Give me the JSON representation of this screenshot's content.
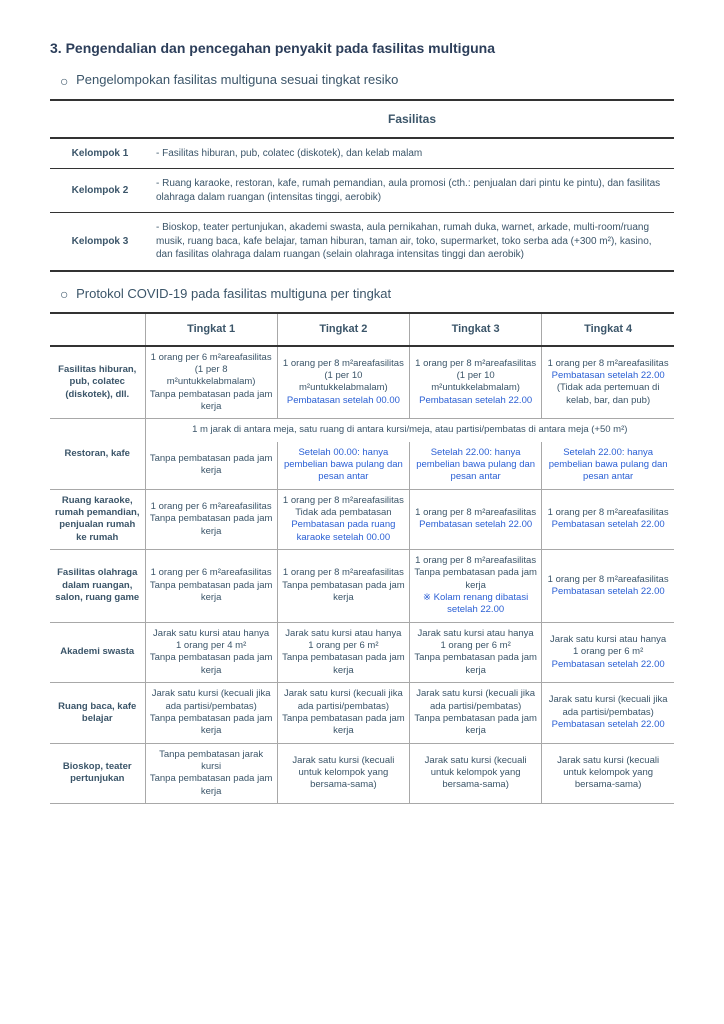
{
  "section": {
    "number": "3.",
    "title": "Pengendalian dan pencegahan penyakit pada fasilitas multiguna"
  },
  "sub1": {
    "title": "Pengelompokan fasilitas multiguna sesuai tingkat resiko",
    "header": "Fasilitas",
    "rows": [
      {
        "label": "Kelompok 1",
        "text": "- Fasilitas   hiburan, pub, colatec (diskotek), dan kelab malam"
      },
      {
        "label": "Kelompok 2",
        "text": "- Ruang   karaoke, restoran, kafe, rumah pemandian, aula promosi (cth.: penjualan dari   pintu ke pintu), dan fasilitas olahraga dalam ruangan (intensitas tinggi,   aerobik)"
      },
      {
        "label": "Kelompok 3",
        "text": "- Bioskop,   teater pertunjukan, akademi swasta, aula pernikahan, rumah duka, warnet, arkade, multi-room/ruang musik, ruang baca, kafe belajar, taman hiburan,   taman air, toko, supermarket, toko serba ada (+300 m²), kasino, dan fasilitas olahraga dalam ruangan (selain olahraga intensitas tinggi dan aerobik)"
      }
    ]
  },
  "sub2": {
    "title": "Protokol COVID-19 pada fasilitas multiguna per tingkat",
    "headers": [
      "",
      "Tingkat 1",
      "Tingkat 2",
      "Tingkat 3",
      "Tingkat 4"
    ],
    "rows": [
      {
        "label": "Fasilitas hiburan, pub, colatec (diskotek), dll.",
        "c1": {
          "a": "1 orang per   6 m²areafasilitas (1 per 8 m²untukkelabmalam)",
          "b": "Tanpa  pembatasan pada jam kerja"
        },
        "c2": {
          "a": "1 orang per 8 m²areafasilitas (1 per   10 m²untukkelabmalam)",
          "b": "Pembatasan  setelah 00.00",
          "b_blue": true
        },
        "c3": {
          "a": "1 orang per   8 m²areafasilitas (1 per   10 m²untukkelabmalam)",
          "b": "Pembatasan  setelah 22.00",
          "b_blue": true
        },
        "c4": {
          "a": "1 orang per   8 m²areafasilitas",
          "b": "Pembatasan   setelah 22.00",
          "b_blue": true,
          "c": "(Tidak ada   pertemuan di kelab, bar, dan pub)"
        }
      },
      {
        "label": "Restoran, kafe",
        "span": "1 m jarak di   antara meja, satu ruang di antara kursi/meja, atau partisi/pembatas di antara meja (+50 m²)",
        "c1": {
          "a": "Tanpa  pembatasan pada jam kerja"
        },
        "c2": {
          "a": "Setelah   00.00: hanya pembelian bawa pulang dan pesan antar",
          "a_blue": true
        },
        "c3": {
          "a": "Setelah   22.00: hanya pembelian bawa pulang dan pesan antar",
          "a_blue": true
        },
        "c4": {
          "a": "Setelah   22.00: hanya pembelian bawa pulang dan pesan antar",
          "a_blue": true
        }
      },
      {
        "label": "Ruang karaoke, rumah pemandian, penjualan rumah ke rumah",
        "c1": {
          "a": "1 orang per   6 m²areafasilitas",
          "b": "Tanpa  pembatasan pada jam kerja"
        },
        "c2": {
          "a": "1 orang per   8 m²areafasilitas Tidak ada pembatasan",
          "b": "Pembatasan   pada ruang karaoke setelah 00.00",
          "b_blue": true
        },
        "c3": {
          "a": "1 orang per   8 m²areafasilitas",
          "b": "Pembatasan  setelah 22.00",
          "b_blue": true
        },
        "c4": {
          "a": "1 orang per   8 m²areafasilitas",
          "b": "Pembatasan  setelah 22.00",
          "b_blue": true
        }
      },
      {
        "label": "Fasilitas olahraga dalam ruangan, salon, ruang game",
        "c1": {
          "a": "1 orang per   6 m²areafasilitas",
          "b": "Tanpa  pembatasan pada jam kerja"
        },
        "c2": {
          "a": "1 orang per   8 m²areafasilitas",
          "b": "Tanpa  pembatasan pada jam kerja"
        },
        "c3": {
          "a": "1 orang per   8 m²areafasilitas Tanpa  pembatasan pada jam kerja",
          "b": "※  Kolam renang dibatasi setelah  22.00",
          "b_blue": true
        },
        "c4": {
          "a": "1 orang per   8 m²areafasilitas",
          "b": "Pembatasan  setelah 22.00",
          "b_blue": true
        }
      },
      {
        "label": "Akademi swasta",
        "c1": {
          "a": "Jarak satu   kursi atau hanya 1 orang per 4 m²",
          "b": "Tanpa   pembatasan pada jam kerja"
        },
        "c2": {
          "a": "Jarak satu   kursi atau hanya 1 orang per 6 m²",
          "b": "Tanpa   pembatasan pada jam kerja"
        },
        "c3": {
          "a": "Jarak satu   kursi atau hanya 1 orang per 6 m²",
          "b": "Tanpa   pembatasan pada jam kerja"
        },
        "c4": {
          "a": "Jarak satu   kursi atau hanya 1 orang per 6 m²",
          "b": "Pembatasan  setelah 22.00",
          "b_blue": true
        }
      },
      {
        "label": "Ruang baca, kafe belajar",
        "c1": {
          "a": "Jarak satu   kursi (kecuali jika  ada partisi/pembatas)",
          "b": "Tanpa   pembatasan pada jam kerja"
        },
        "c2": {
          "a": "Jarak satu   kursi (kecuali jika  ada partisi/pembatas)",
          "b": "Tanpa   pembatasan pada jam kerja"
        },
        "c3": {
          "a": "Jarak satu   kursi (kecuali jika  ada partisi/pembatas)",
          "b": "Tanpa   pembatasan pada jam kerja"
        },
        "c4": {
          "a": "Jarak satu   kursi (kecuali jika  ada partisi/pembatas)",
          "b": "Pembatasan  setelah 22.00",
          "b_blue": true
        }
      },
      {
        "label": "Bioskop, teater pertunjukan",
        "c1": {
          "a": "Tanpa   pembatasan jarak kursi",
          "b": "Tanpa   pembatasan pada jam kerja"
        },
        "c2": {
          "a": "Jarak satu   kursi (kecuali untuk kelompok yang bersama-sama)"
        },
        "c3": {
          "a": "Jarak satu   kursi (kecuali untuk kelompok yang bersama-sama)"
        },
        "c4": {
          "a": "Jarak satu   kursi (kecuali untuk kelompok yang bersama-sama)"
        }
      }
    ]
  }
}
